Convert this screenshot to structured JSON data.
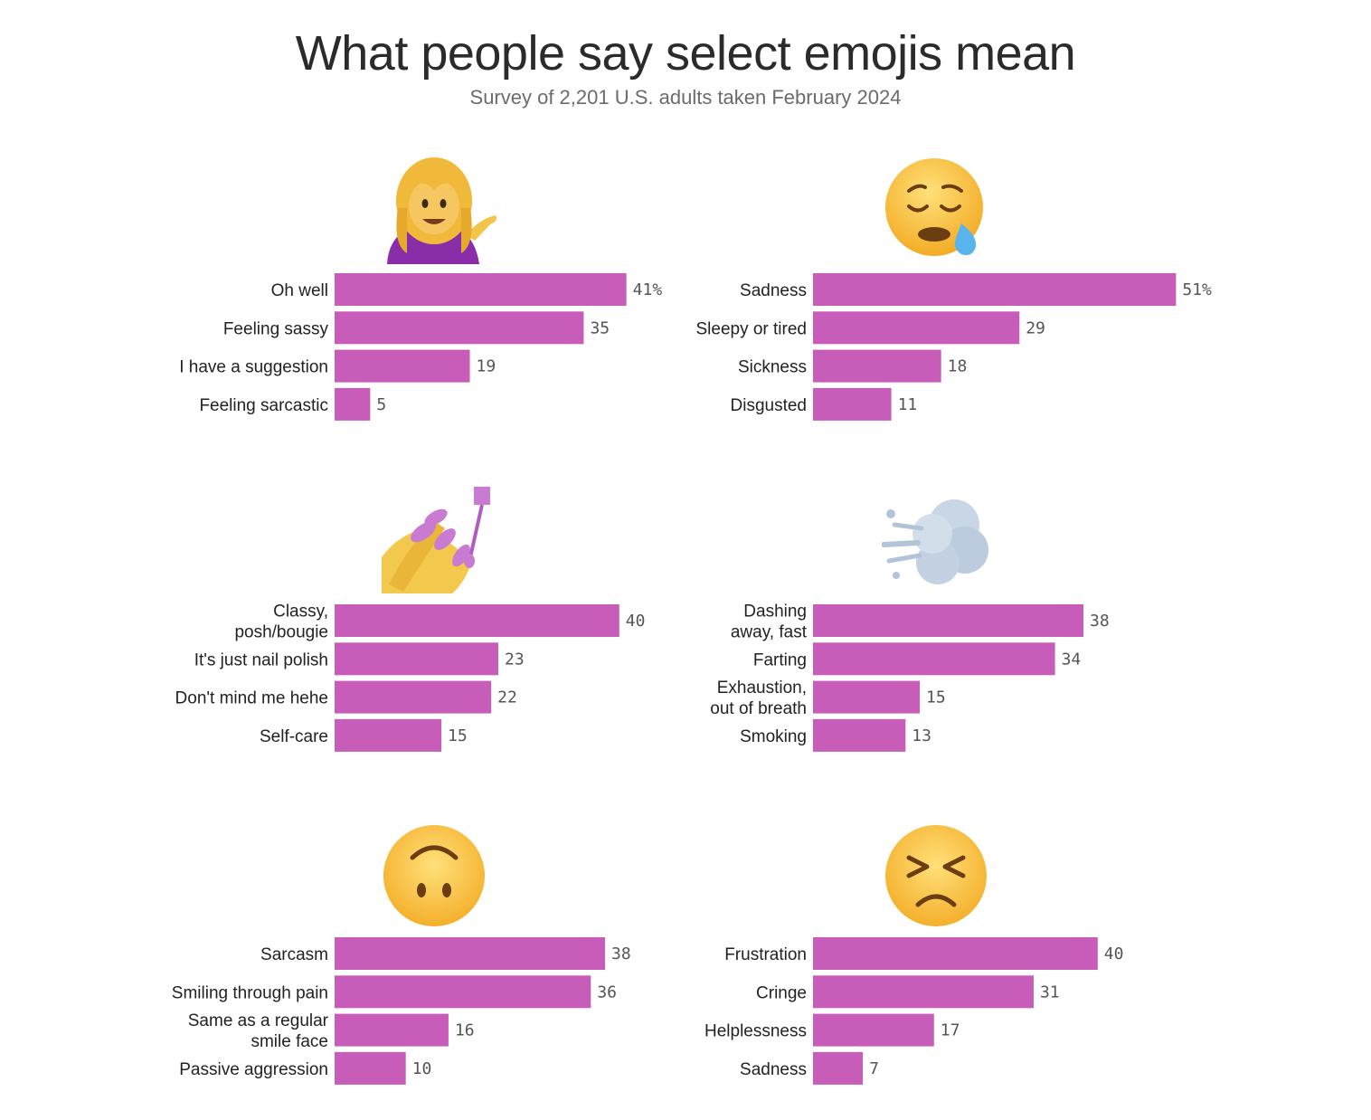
{
  "title": "What people say select emojis mean",
  "subtitle": "Survey of 2,201 U.S. adults taken February 2024",
  "colors": {
    "bar": "#c75db9",
    "title": "#2b2b2b",
    "subtitle": "#6b6b6b"
  },
  "chart_data": [
    {
      "type": "bar",
      "orientation": "horizontal",
      "icon": "person-tipping-hand-emoji",
      "categories": [
        [
          "Oh well"
        ],
        [
          "Feeling sassy"
        ],
        [
          "I have a suggestion"
        ],
        [
          "Feeling sarcastic"
        ]
      ],
      "values": [
        41,
        35,
        19,
        5
      ],
      "value_labels": [
        "41%",
        "35",
        "19",
        "5"
      ]
    },
    {
      "type": "bar",
      "orientation": "horizontal",
      "icon": "sleepy-face-emoji",
      "categories": [
        [
          "Sadness"
        ],
        [
          "Sleepy or tired"
        ],
        [
          "Sickness"
        ],
        [
          "Disgusted"
        ]
      ],
      "values": [
        51,
        29,
        18,
        11
      ],
      "value_labels": [
        "51%",
        "29",
        "18",
        "11"
      ]
    },
    {
      "type": "bar",
      "orientation": "horizontal",
      "icon": "nail-polish-emoji",
      "categories": [
        [
          "Classy,",
          "posh/bougie"
        ],
        [
          "It's just nail polish"
        ],
        [
          "Don't mind me hehe"
        ],
        [
          "Self-care"
        ]
      ],
      "values": [
        40,
        23,
        22,
        15
      ],
      "value_labels": [
        "40",
        "23",
        "22",
        "15"
      ]
    },
    {
      "type": "bar",
      "orientation": "horizontal",
      "icon": "dashing-away-emoji",
      "categories": [
        [
          "Dashing",
          "away, fast"
        ],
        [
          "Farting"
        ],
        [
          "Exhaustion,",
          "out of breath"
        ],
        [
          "Smoking"
        ]
      ],
      "values": [
        38,
        34,
        15,
        13
      ],
      "value_labels": [
        "38",
        "34",
        "15",
        "13"
      ]
    },
    {
      "type": "bar",
      "orientation": "horizontal",
      "icon": "upside-down-face-emoji",
      "categories": [
        [
          "Sarcasm"
        ],
        [
          "Smiling through pain"
        ],
        [
          "Same as a regular",
          "smile face"
        ],
        [
          "Passive aggression"
        ]
      ],
      "values": [
        38,
        36,
        16,
        10
      ],
      "value_labels": [
        "38",
        "36",
        "16",
        "10"
      ]
    },
    {
      "type": "bar",
      "orientation": "horizontal",
      "icon": "persevering-face-emoji",
      "categories": [
        [
          "Frustration"
        ],
        [
          "Cringe"
        ],
        [
          "Helplessness"
        ],
        [
          "Sadness"
        ]
      ],
      "values": [
        40,
        31,
        17,
        7
      ],
      "value_labels": [
        "40",
        "31",
        "17",
        "7"
      ]
    }
  ]
}
